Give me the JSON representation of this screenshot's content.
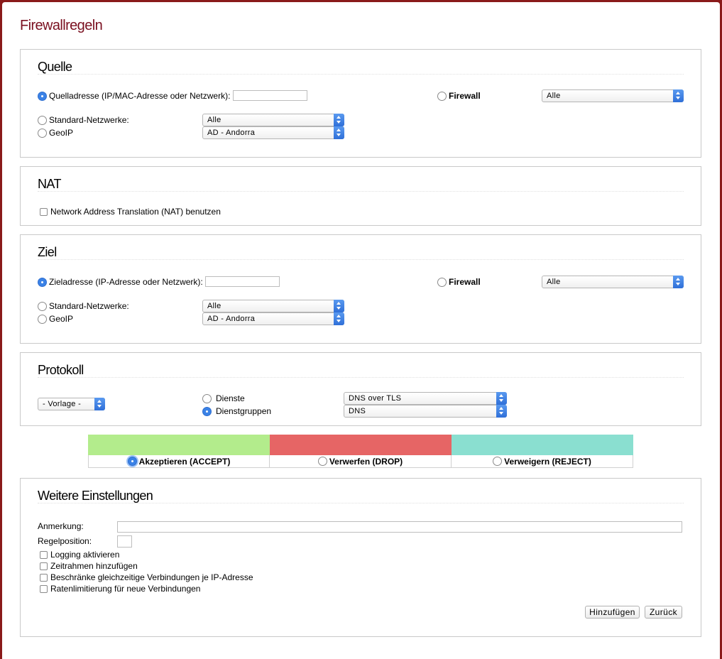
{
  "page": {
    "title": "Firewallregeln"
  },
  "source": {
    "title": "Quelle",
    "address_label": "Quelladresse (IP/MAC-Adresse oder Netzwerk):",
    "address_value": "",
    "standard_networks_label": "Standard-Netzwerke:",
    "standard_networks_value": "Alle",
    "geoip_label": "GeoIP",
    "geoip_value": "AD - Andorra",
    "firewall_label": "Firewall",
    "firewall_value": "Alle",
    "selected": "address"
  },
  "nat": {
    "title": "NAT",
    "checkbox_label": "Network Address Translation (NAT) benutzen"
  },
  "destination": {
    "title": "Ziel",
    "address_label": "Zieladresse (IP-Adresse oder Netzwerk):",
    "address_value": "",
    "standard_networks_label": "Standard-Netzwerke:",
    "standard_networks_value": "Alle",
    "geoip_label": "GeoIP",
    "geoip_value": "AD - Andorra",
    "firewall_label": "Firewall",
    "firewall_value": "Alle",
    "selected": "address"
  },
  "protocol": {
    "title": "Protokoll",
    "template_value": "- Vorlage -",
    "services_label": "Dienste",
    "services_value": "DNS over TLS",
    "service_groups_label": "Dienstgruppen",
    "service_groups_value": "DNS",
    "selected": "service_groups"
  },
  "actions": {
    "accept_label": "Akzeptieren (ACCEPT)",
    "drop_label": "Verwerfen (DROP)",
    "reject_label": "Verweigern (REJECT)",
    "selected": "accept",
    "colors": {
      "accept": "#b3ec8c",
      "drop": "#e66565",
      "reject": "#8adfd0"
    }
  },
  "more": {
    "title": "Weitere Einstellungen",
    "remark_label": "Anmerkung:",
    "remark_value": "",
    "position_label": "Regelposition:",
    "position_value": "",
    "logging_label": "Logging aktivieren",
    "timeframe_label": "Zeitrahmen hinzufügen",
    "limit_conn_label": "Beschränke gleichzeitige Verbindungen je IP-Adresse",
    "rate_limit_label": "Ratenlimitierung für neue Verbindungen",
    "add_button": "Hinzufügen",
    "back_button": "Zurück"
  }
}
